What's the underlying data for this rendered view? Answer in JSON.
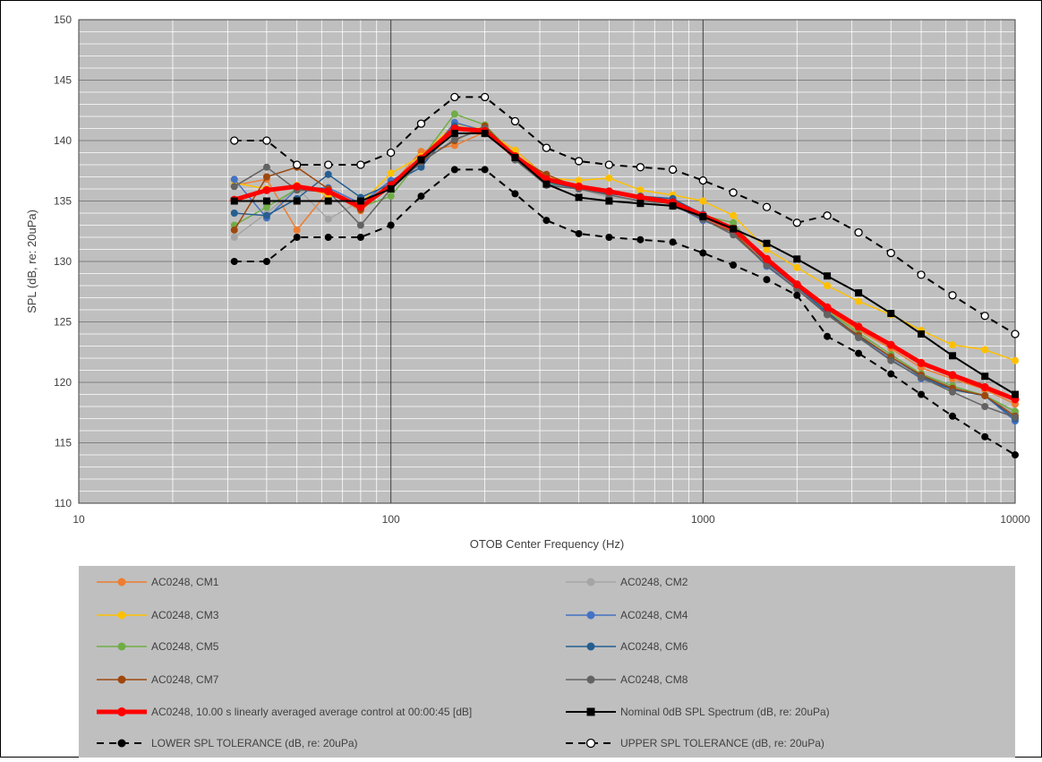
{
  "chart_data": {
    "type": "line",
    "xlabel": "OTOB Center Frequency (Hz)",
    "ylabel": "SPL (dB, re: 20uPa)",
    "xscale": "log",
    "xlim": [
      10,
      10000
    ],
    "ylim": [
      110,
      150
    ],
    "x_ticks": [
      "10",
      "100",
      "1000",
      "10000"
    ],
    "y_ticks": [
      "110",
      "115",
      "120",
      "125",
      "130",
      "135",
      "140",
      "145",
      "150"
    ],
    "grid": true,
    "legend_position": "bottom",
    "x": [
      31.5,
      40,
      50,
      63,
      80,
      100,
      125,
      160,
      200,
      250,
      315,
      400,
      500,
      630,
      800,
      1000,
      1250,
      1600,
      2000,
      2500,
      3150,
      4000,
      5000,
      6300,
      8000,
      10000
    ],
    "series": [
      {
        "name": "AC0248, CM1",
        "color": "#ED7D31",
        "width": 1.5,
        "dash": "",
        "marker": "dot",
        "values": [
          136.3,
          136.8,
          132.6,
          135.8,
          134.2,
          136.3,
          139.1,
          139.6,
          140.7,
          139.2,
          137.0,
          136.2,
          135.8,
          135.3,
          135.0,
          133.9,
          132.8,
          130.2,
          128.1,
          126.0,
          124.3,
          122.8,
          121.2,
          120.3,
          119.4,
          118.2
        ]
      },
      {
        "name": "AC0248, CM2",
        "color": "#A5A5A5",
        "width": 1.5,
        "dash": "",
        "marker": "dot",
        "values": [
          132.0,
          134.0,
          136.1,
          133.5,
          135.0,
          136.2,
          138.2,
          141.0,
          140.5,
          138.8,
          136.3,
          136.0,
          135.3,
          135.1,
          134.5,
          133.8,
          132.5,
          129.8,
          127.8,
          125.8,
          124.0,
          122.0,
          120.6,
          119.6,
          118.9,
          117.4
        ]
      },
      {
        "name": "AC0248, CM3",
        "color": "#FFC000",
        "width": 1.5,
        "dash": "",
        "marker": "dot",
        "values": [
          136.5,
          136.0,
          136.3,
          135.5,
          134.8,
          137.3,
          138.7,
          141.4,
          140.9,
          139.2,
          136.9,
          136.7,
          136.9,
          135.9,
          135.5,
          135.0,
          133.8,
          131.0,
          129.5,
          128.0,
          126.7,
          125.6,
          124.3,
          123.1,
          122.7,
          121.8
        ]
      },
      {
        "name": "AC0248, CM4",
        "color": "#4472C4",
        "width": 1.5,
        "dash": "",
        "marker": "dot",
        "values": [
          136.8,
          133.6,
          136.0,
          136.1,
          134.8,
          136.7,
          138.0,
          141.5,
          140.8,
          138.5,
          136.4,
          136.2,
          135.6,
          135.3,
          134.7,
          133.4,
          132.4,
          129.6,
          127.7,
          125.7,
          123.7,
          121.9,
          120.3,
          119.4,
          118.9,
          116.8
        ]
      },
      {
        "name": "AC0248, CM5",
        "color": "#70AD47",
        "width": 1.5,
        "dash": "",
        "marker": "dot",
        "values": [
          133.0,
          134.5,
          136.0,
          135.8,
          134.5,
          135.4,
          138.5,
          142.2,
          141.3,
          138.7,
          136.5,
          136.1,
          135.7,
          135.3,
          134.9,
          133.8,
          133.2,
          130.0,
          127.9,
          125.9,
          124.1,
          122.3,
          120.7,
          119.7,
          118.9,
          117.6
        ]
      },
      {
        "name": "AC0248, CM6",
        "color": "#255E91",
        "width": 1.5,
        "dash": "",
        "marker": "dot",
        "values": [
          134.0,
          133.8,
          135.2,
          137.2,
          135.3,
          136.4,
          137.8,
          141.2,
          140.7,
          138.7,
          136.6,
          136.0,
          135.6,
          135.4,
          135.2,
          133.9,
          132.7,
          129.9,
          127.9,
          125.8,
          123.8,
          122.1,
          120.5,
          119.4,
          118.9,
          117.0
        ]
      },
      {
        "name": "AC0248, CM7",
        "color": "#9E480E",
        "width": 1.5,
        "dash": "",
        "marker": "dot",
        "values": [
          132.6,
          137.0,
          137.8,
          136.0,
          134.3,
          136.3,
          138.3,
          140.0,
          141.2,
          138.7,
          137.2,
          136.1,
          135.8,
          135.3,
          134.7,
          133.5,
          132.4,
          129.7,
          127.7,
          125.6,
          123.9,
          122.1,
          120.6,
          119.5,
          118.9,
          117.2
        ]
      },
      {
        "name": "AC0248, CM8",
        "color": "#636363",
        "width": 1.5,
        "dash": "",
        "marker": "dot",
        "values": [
          136.2,
          137.8,
          135.9,
          135.8,
          133.0,
          136.0,
          138.2,
          140.1,
          141.0,
          138.4,
          136.3,
          136.0,
          135.5,
          135.0,
          134.8,
          133.5,
          132.2,
          129.7,
          127.7,
          125.6,
          123.7,
          121.8,
          120.4,
          119.2,
          118.0,
          117.1
        ]
      },
      {
        "name": "AC0248, 10.00 s linearly averaged average control at 00:00:45 [dB]",
        "color": "#FF0000",
        "width": 5,
        "dash": "",
        "marker": "dot",
        "values": [
          135.1,
          135.9,
          136.2,
          135.8,
          134.5,
          136.3,
          138.5,
          141.0,
          140.8,
          138.7,
          136.8,
          136.2,
          135.8,
          135.3,
          134.9,
          133.8,
          132.7,
          130.2,
          128.1,
          126.2,
          124.6,
          123.1,
          121.6,
          120.6,
          119.6,
          118.6
        ]
      },
      {
        "name": "Nominal 0dB SPL Spectrum (dB, re: 20uPa)",
        "color": "#000000",
        "width": 2,
        "dash": "",
        "marker": "square",
        "values": [
          135.0,
          135.0,
          135.0,
          135.0,
          135.0,
          136.0,
          138.4,
          140.6,
          140.6,
          138.6,
          136.4,
          135.3,
          135.0,
          134.8,
          134.6,
          133.7,
          132.7,
          131.5,
          130.2,
          128.8,
          127.4,
          125.7,
          124.0,
          122.2,
          120.5,
          119.0
        ]
      },
      {
        "name": "LOWER SPL TOLERANCE (dB, re: 20uPa)",
        "color": "#000000",
        "width": 2,
        "dash": "8,6",
        "marker": "dot",
        "values": [
          130.0,
          130.0,
          132.0,
          132.0,
          132.0,
          133.0,
          135.4,
          137.6,
          137.6,
          135.6,
          133.4,
          132.3,
          132.0,
          131.8,
          131.6,
          130.7,
          129.7,
          128.5,
          127.2,
          123.8,
          122.4,
          120.7,
          119.0,
          117.2,
          115.5,
          114.0
        ]
      },
      {
        "name": "UPPER SPL TOLERANCE (dB, re: 20uPa)",
        "color": "#000000",
        "width": 2,
        "dash": "8,6",
        "marker": "ring",
        "values": [
          140.0,
          140.0,
          138.0,
          138.0,
          138.0,
          139.0,
          141.4,
          143.6,
          143.6,
          141.6,
          139.4,
          138.3,
          138.0,
          137.8,
          137.6,
          136.7,
          135.7,
          134.5,
          133.2,
          133.8,
          132.4,
          130.7,
          128.9,
          127.2,
          125.5,
          124.0
        ]
      }
    ]
  }
}
